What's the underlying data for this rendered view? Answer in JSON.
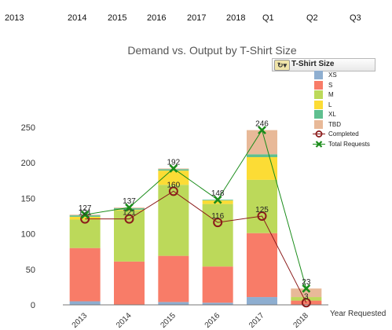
{
  "filter_bar": {
    "items": [
      "2013",
      "2014",
      "2015",
      "2016",
      "2017",
      "2018",
      "Q1",
      "Q2",
      "Q3"
    ]
  },
  "chart_data": {
    "type": "bar",
    "stacked": true,
    "title": "Demand vs. Output by T-Shirt Size",
    "xlabel": "Year Requested",
    "ylabel": "",
    "categories": [
      "2013",
      "2014",
      "2015",
      "2016",
      "2017",
      "2018"
    ],
    "ylim": [
      0,
      250
    ],
    "yticks": [
      0,
      50,
      100,
      150,
      200,
      250
    ],
    "legend_title": "T-Shirt Size",
    "legend_position": "top-right",
    "series": [
      {
        "name": "XS",
        "color": "#8eaed0",
        "values": [
          5,
          0,
          4,
          3,
          11,
          0
        ]
      },
      {
        "name": "S",
        "color": "#f87c68",
        "values": [
          75,
          61,
          65,
          51,
          90,
          6
        ]
      },
      {
        "name": "M",
        "color": "#bcd95a",
        "values": [
          40,
          72,
          100,
          88,
          75,
          5
        ]
      },
      {
        "name": "L",
        "color": "#fcdc35",
        "values": [
          4,
          1,
          20,
          5,
          32,
          0
        ]
      },
      {
        "name": "XL",
        "color": "#5fbf8f",
        "values": [
          2,
          2,
          2,
          1,
          4,
          0
        ]
      },
      {
        "name": "TBD",
        "color": "#e8b998",
        "values": [
          1,
          1,
          1,
          0,
          34,
          12
        ]
      }
    ],
    "lines": [
      {
        "name": "Completed",
        "color": "#8b1a1a",
        "marker": "circle",
        "values": [
          121,
          121,
          160,
          116,
          125,
          3
        ]
      },
      {
        "name": "Total Requests",
        "color": "#1a8c1a",
        "marker": "x",
        "values": [
          127,
          137,
          192,
          148,
          246,
          23
        ]
      }
    ],
    "point_labels": {
      "Completed": [
        "121",
        "121",
        "160",
        "116",
        "125",
        "3"
      ],
      "Total Requests": [
        "127",
        "137",
        "192",
        "148",
        "246",
        "23"
      ]
    }
  }
}
